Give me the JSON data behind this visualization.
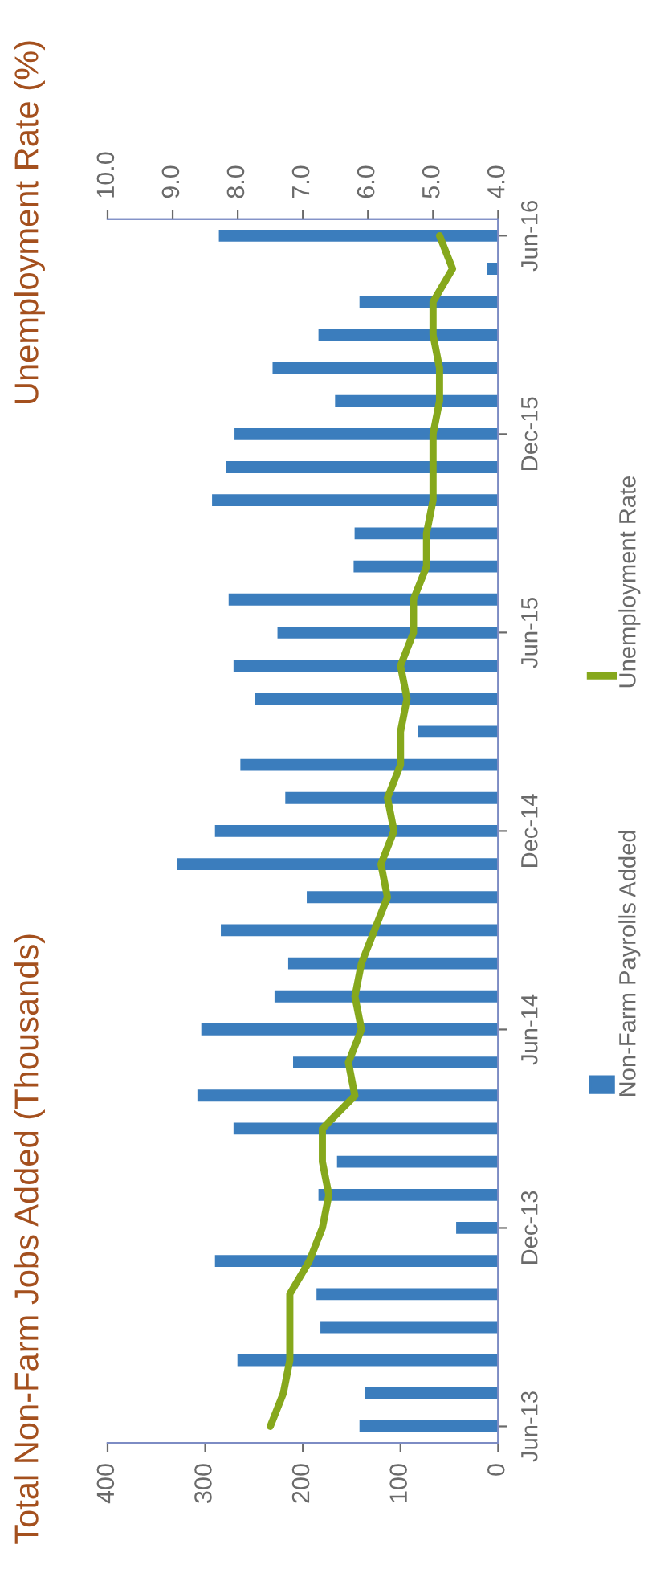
{
  "chart_data": {
    "type": "bar",
    "orientation": "horizontal",
    "title": "Total Non-Farm Jobs Added (Thousands)",
    "x2label": "Unemployment Rate (%)",
    "categories": [
      "Jun-16",
      null,
      null,
      null,
      null,
      null,
      "Dec-15",
      null,
      null,
      null,
      null,
      null,
      "Jun-15",
      null,
      null,
      null,
      null,
      null,
      "Dec-14",
      null,
      null,
      null,
      null,
      null,
      "Jun-14",
      null,
      null,
      null,
      null,
      null,
      "Dec-13",
      null,
      null,
      null,
      null,
      null,
      "Jun-13"
    ],
    "series": [
      {
        "name": "Non-Farm Payrolls Added",
        "color": "#3b7dbd",
        "values": [
          286,
          11,
          142,
          184,
          231,
          167,
          270,
          279,
          293,
          147,
          148,
          276,
          226,
          271,
          249,
          82,
          264,
          218,
          290,
          329,
          196,
          284,
          215,
          229,
          304,
          210,
          308,
          271,
          165,
          184,
          43,
          290,
          186,
          182,
          267,
          136,
          142
        ]
      },
      {
        "name": "Unemployment Rate",
        "type": "line",
        "axis": "x2",
        "color": "#86a81c",
        "values": [
          4.9,
          4.7,
          5.0,
          5.0,
          4.9,
          4.9,
          5.0,
          5.0,
          5.0,
          5.1,
          5.1,
          5.3,
          5.3,
          5.5,
          5.4,
          5.5,
          5.5,
          5.7,
          5.6,
          5.8,
          5.7,
          5.9,
          6.1,
          6.2,
          6.1,
          6.3,
          6.2,
          6.7,
          6.7,
          6.6,
          6.7,
          6.9,
          7.2,
          7.2,
          7.2,
          7.3,
          7.5
        ]
      }
    ],
    "xlim": [
      400,
      0
    ],
    "xticks": [
      400,
      300,
      200,
      100,
      0
    ],
    "x2lim": [
      10,
      4
    ],
    "x2ticks": [
      {
        "value": 10,
        "label": "10.0"
      },
      {
        "value": 9,
        "label": "9.0"
      },
      {
        "value": 8,
        "label": "8.0"
      },
      {
        "value": 7,
        "label": "7.0"
      },
      {
        "value": 6,
        "label": "6.0"
      },
      {
        "value": 5,
        "label": "5.0"
      },
      {
        "value": 4,
        "label": "4.0"
      }
    ],
    "legend": "right"
  }
}
